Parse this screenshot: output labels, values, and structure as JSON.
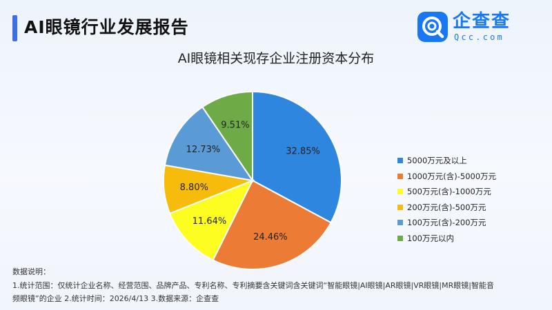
{
  "header": {
    "title": "AI眼镜行业发展报告",
    "logo": {
      "name": "企查查",
      "sub": "Qcc.com",
      "icon": "magnifier-chat-icon"
    }
  },
  "colors": {
    "accent": "#3d6fe0",
    "brand": "#1877f2"
  },
  "chart_data": {
    "type": "pie",
    "title": "AI眼镜相关现存企业注册资本分布",
    "legend_position": "right",
    "slices": [
      {
        "label": "5000万元及以上",
        "value": 32.85,
        "display": "32.85%",
        "color": "#2f86de"
      },
      {
        "label": "1000万元(含)-5000万元",
        "value": 24.46,
        "display": "24.46%",
        "color": "#ec7c35"
      },
      {
        "label": "500万元(含)-1000万元",
        "value": 11.64,
        "display": "11.64%",
        "color": "#fdfd22"
      },
      {
        "label": "200万元(含)-500万元",
        "value": 8.8,
        "display": "8.80%",
        "color": "#f7bb0c"
      },
      {
        "label": "100万元(含)-200万元",
        "value": 12.73,
        "display": "12.73%",
        "color": "#5b9bd5"
      },
      {
        "label": "100万元以内",
        "value": 9.51,
        "display": "9.51%",
        "color": "#6eab46"
      }
    ]
  },
  "notes": {
    "heading": "数据说明：",
    "line1": "1.统计范围：仅统计企业名称、经营范围、品牌产品、专利名称、专利摘要含关键词含关键词“智能眼镜|AI眼镜|AR眼镜|VR眼镜|MR眼镜|智能音",
    "line2": "频眼镜”的企业  2.统计时间：2026/4/13  3.数据来源：企查查"
  }
}
